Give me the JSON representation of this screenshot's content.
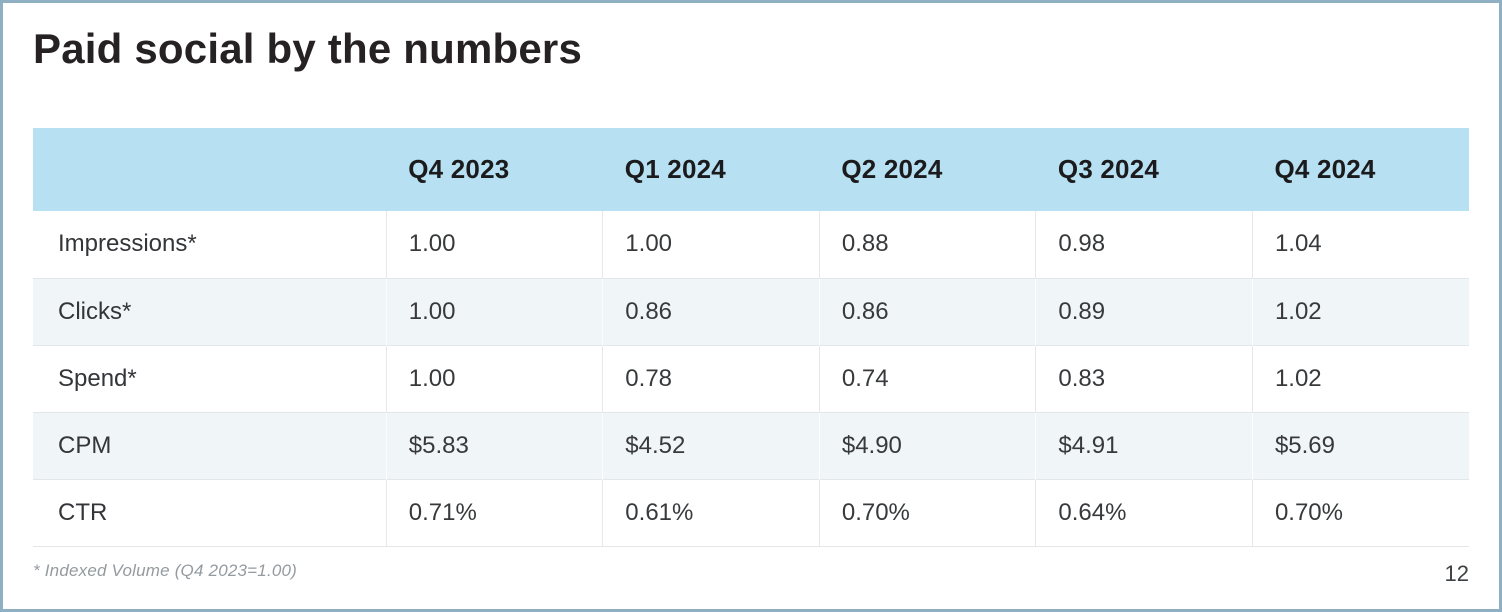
{
  "slide": {
    "title": "Paid social by the numbers",
    "footnote": "* Indexed Volume (Q4 2023=1.00)",
    "page_number": "12"
  },
  "table": {
    "columns": [
      "",
      "Q4 2023",
      "Q1 2024",
      "Q2 2024",
      "Q3 2024",
      "Q4 2024"
    ],
    "rows": [
      {
        "label": "Impressions*",
        "values": [
          "1.00",
          "1.00",
          "0.88",
          "0.98",
          "1.04"
        ]
      },
      {
        "label": "Clicks*",
        "values": [
          "1.00",
          "0.86",
          "0.86",
          "0.89",
          "1.02"
        ]
      },
      {
        "label": "Spend*",
        "values": [
          "1.00",
          "0.78",
          "0.74",
          "0.83",
          "1.02"
        ]
      },
      {
        "label": "CPM",
        "values": [
          "$5.83",
          "$4.52",
          "$4.90",
          "$4.91",
          "$5.69"
        ]
      },
      {
        "label": "CTR",
        "values": [
          "0.71%",
          "0.61%",
          "0.70%",
          "0.64%",
          "0.70%"
        ]
      }
    ]
  },
  "chart_data": {
    "type": "table",
    "title": "Paid social by the numbers",
    "categories": [
      "Q4 2023",
      "Q1 2024",
      "Q2 2024",
      "Q3 2024",
      "Q4 2024"
    ],
    "series": [
      {
        "name": "Impressions (indexed)",
        "values": [
          1.0,
          1.0,
          0.88,
          0.98,
          1.04
        ]
      },
      {
        "name": "Clicks (indexed)",
        "values": [
          1.0,
          0.86,
          0.86,
          0.89,
          1.02
        ]
      },
      {
        "name": "Spend (indexed)",
        "values": [
          1.0,
          0.78,
          0.74,
          0.83,
          1.02
        ]
      },
      {
        "name": "CPM ($)",
        "values": [
          5.83,
          4.52,
          4.9,
          4.91,
          5.69
        ]
      },
      {
        "name": "CTR (%)",
        "values": [
          0.71,
          0.61,
          0.7,
          0.64,
          0.7
        ]
      }
    ],
    "annotations": [
      "* Indexed Volume (Q4 2023=1.00)"
    ]
  },
  "colors": {
    "header_bg": "#b7e0f3",
    "alt_row_bg": "#f0f5f7",
    "slide_border": "#8fafc3",
    "grid_line": "#e2e6e8",
    "title_text": "#262223",
    "footnote_text": "#949ba0"
  }
}
